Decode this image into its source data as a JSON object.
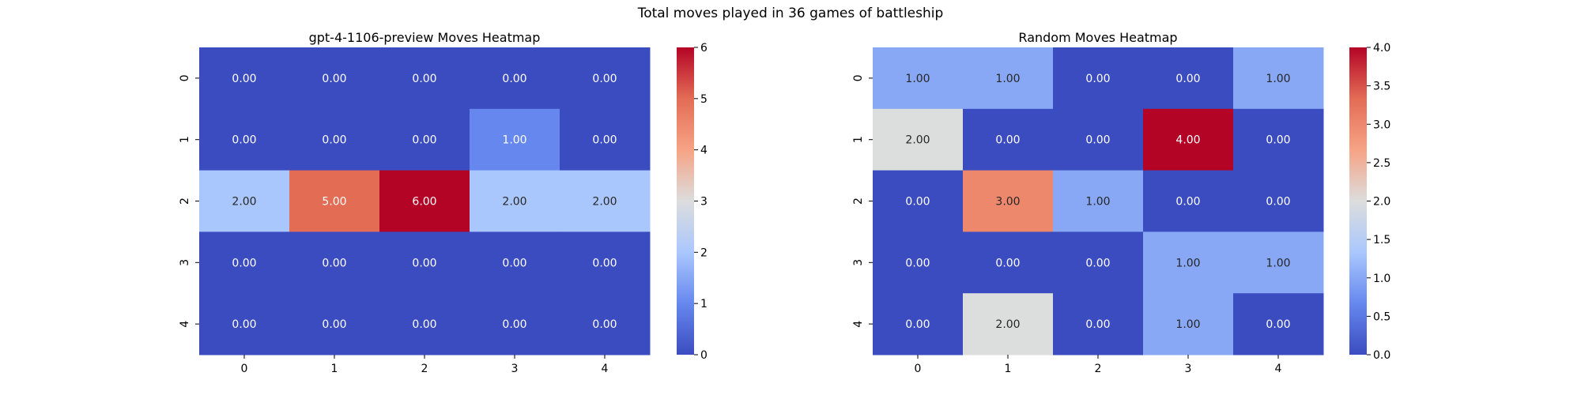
{
  "figure": {
    "suptitle": "Total moves played in 36 games of battleship"
  },
  "chart_data": [
    {
      "type": "heatmap",
      "title": "gpt-4-1106-preview Moves Heatmap",
      "xlabel": "",
      "ylabel": "",
      "x_ticks": [
        "0",
        "1",
        "2",
        "3",
        "4"
      ],
      "y_ticks": [
        "0",
        "1",
        "2",
        "3",
        "4"
      ],
      "values": [
        [
          0,
          0,
          0,
          0,
          0
        ],
        [
          0,
          0,
          0,
          1,
          0
        ],
        [
          2,
          5,
          6,
          2,
          2
        ],
        [
          0,
          0,
          0,
          0,
          0
        ],
        [
          0,
          0,
          0,
          0,
          0
        ]
      ],
      "annotation_format": "0.00",
      "colormap": "coolwarm",
      "colorbar": {
        "min": 0,
        "max": 6,
        "ticks": [
          "0",
          "1",
          "2",
          "3",
          "4",
          "5",
          "6"
        ]
      }
    },
    {
      "type": "heatmap",
      "title": "Random Moves Heatmap",
      "xlabel": "",
      "ylabel": "",
      "x_ticks": [
        "0",
        "1",
        "2",
        "3",
        "4"
      ],
      "y_ticks": [
        "0",
        "1",
        "2",
        "3",
        "4"
      ],
      "values": [
        [
          1,
          1,
          0,
          0,
          1
        ],
        [
          2,
          0,
          0,
          4,
          0
        ],
        [
          0,
          3,
          1,
          0,
          0
        ],
        [
          0,
          0,
          0,
          1,
          1
        ],
        [
          0,
          2,
          0,
          1,
          0
        ]
      ],
      "annotation_format": "0.00",
      "colormap": "coolwarm",
      "colorbar": {
        "min": 0,
        "max": 4,
        "ticks": [
          "0.0",
          "0.5",
          "1.0",
          "1.5",
          "2.0",
          "2.5",
          "3.0",
          "3.5",
          "4.0"
        ]
      }
    }
  ],
  "colors": {
    "colormap_stops": [
      "#3b4cc0",
      "#6688ee",
      "#aac7fd",
      "#dcdddd",
      "#f6a385",
      "#e36c55",
      "#b40426"
    ],
    "axis": "#000000",
    "text_light": "#ffffff",
    "text_dark": "#262626"
  }
}
